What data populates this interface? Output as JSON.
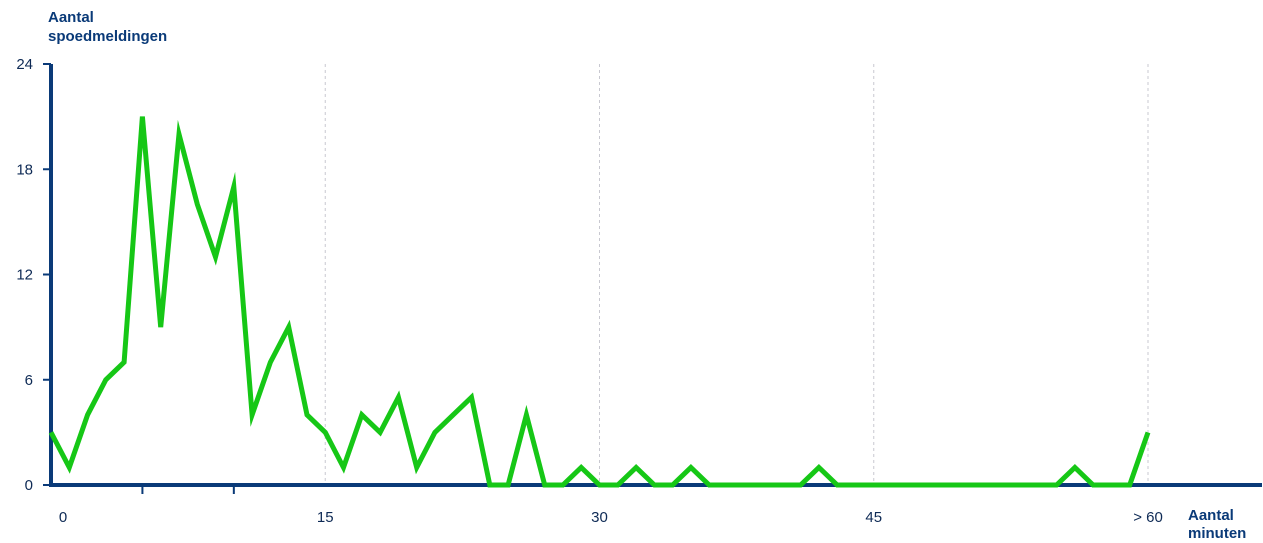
{
  "colors": {
    "line": "#16c716",
    "axis": "#0a3a78",
    "grid": "#c8c8d0",
    "text": "#0e2a55"
  },
  "chart_data": {
    "type": "line",
    "ylabel": "Aantal\nspoedmeldingen",
    "xlabel": "Aantal\nminuten",
    "ylim": [
      0,
      24
    ],
    "xlim": [
      0,
      60
    ],
    "y_ticks": [
      "0",
      "6",
      "12",
      "18",
      "24"
    ],
    "x_ticks": [
      {
        "value": 0,
        "label": "0"
      },
      {
        "value": 15,
        "label": "15"
      },
      {
        "value": 30,
        "label": "30"
      },
      {
        "value": 45,
        "label": "45"
      },
      {
        "value": 60,
        "label": "> 60"
      }
    ],
    "grid": "vertical dashed at 15, 30, 45, 60",
    "series": [
      {
        "x": [
          0,
          1,
          2,
          3,
          4,
          5,
          6,
          7,
          8,
          9,
          10,
          11,
          12,
          13,
          14,
          15,
          16,
          17,
          18,
          19,
          20,
          21,
          22,
          23,
          24,
          25,
          26,
          27,
          28,
          29,
          30,
          31,
          32,
          33,
          34,
          35,
          36,
          37,
          38,
          39,
          40,
          41,
          42,
          43,
          44,
          45,
          46,
          47,
          48,
          49,
          50,
          51,
          52,
          53,
          54,
          55,
          56,
          57,
          58,
          59,
          60
        ],
        "values": [
          3,
          1,
          4,
          6,
          7,
          21,
          9,
          20,
          16,
          13,
          17,
          4,
          7,
          9,
          4,
          3,
          1,
          4,
          3,
          5,
          1,
          3,
          4,
          5,
          0,
          0,
          4,
          0,
          0,
          1,
          0,
          0,
          1,
          0,
          0,
          1,
          0,
          0,
          0,
          0,
          0,
          0,
          1,
          0,
          0,
          0,
          0,
          0,
          0,
          0,
          0,
          0,
          0,
          0,
          0,
          0,
          1,
          0,
          0,
          0,
          3
        ]
      }
    ]
  }
}
